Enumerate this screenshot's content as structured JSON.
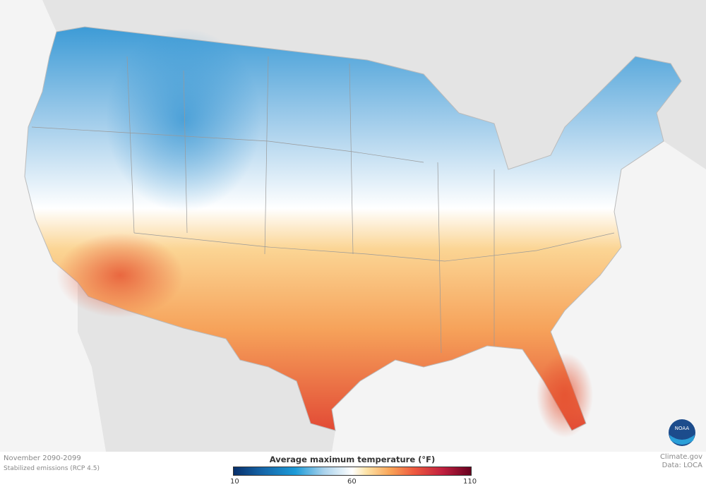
{
  "map": {
    "period": "November 2090-2099",
    "scenario": "Stabilized emissions (RCP 4.5)",
    "credit": "Climate.gov",
    "data_source": "Data: LOCA",
    "logo": "NOAA"
  },
  "legend": {
    "title": "Average maximum temperature (°F)",
    "min_label": "10",
    "mid_label": "60",
    "max_label": "110",
    "colors": [
      "#08306b",
      "#1c9bd8",
      "#ffffff",
      "#f9a457",
      "#ee5a3f",
      "#67001f"
    ]
  }
}
